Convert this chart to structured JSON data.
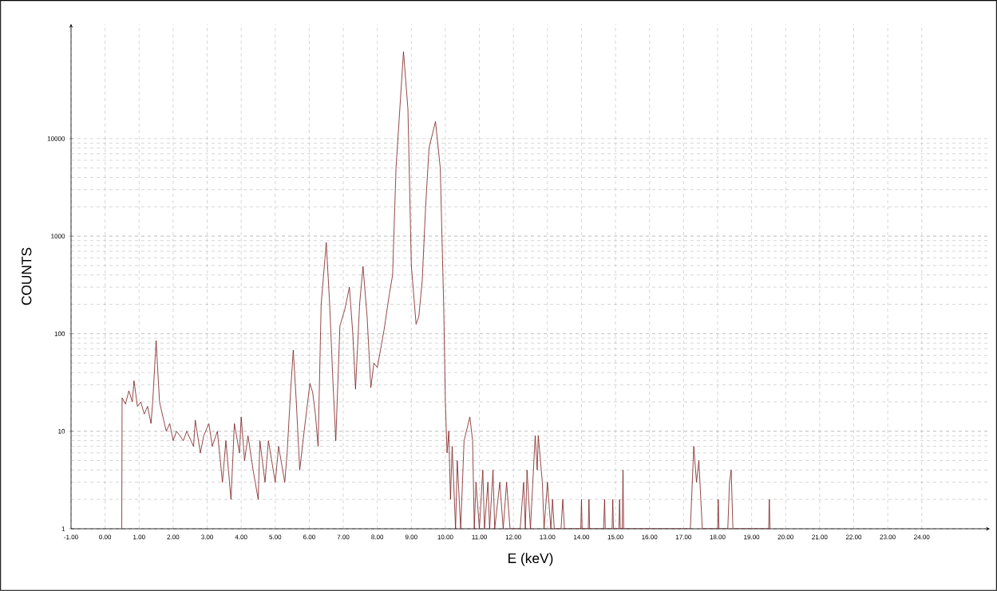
{
  "chart_data": {
    "type": "line",
    "xlabel": "E (keV)",
    "ylabel": "COUNTS",
    "log": "y",
    "grid": true,
    "marker": "none",
    "line_style": "solid",
    "xlim": [
      -1,
      26
    ],
    "ylim": [
      1,
      150000
    ],
    "xticks": [
      {
        "value": -1,
        "label": "-1.00"
      },
      {
        "value": 0,
        "label": "0.00"
      },
      {
        "value": 1,
        "label": "1.00"
      },
      {
        "value": 2,
        "label": "2.00"
      },
      {
        "value": 3,
        "label": "3.00"
      },
      {
        "value": 4,
        "label": "4.00"
      },
      {
        "value": 5,
        "label": "5.00"
      },
      {
        "value": 6,
        "label": "6.00"
      },
      {
        "value": 7,
        "label": "7.00"
      },
      {
        "value": 8,
        "label": "8.00"
      },
      {
        "value": 9,
        "label": "9.00"
      },
      {
        "value": 10,
        "label": "10.00"
      },
      {
        "value": 11,
        "label": "11.00"
      },
      {
        "value": 12,
        "label": "12.00"
      },
      {
        "value": 13,
        "label": "13.00"
      },
      {
        "value": 14,
        "label": "14.00"
      },
      {
        "value": 15,
        "label": "15.00"
      },
      {
        "value": 16,
        "label": "16.00"
      },
      {
        "value": 17,
        "label": "17.00"
      },
      {
        "value": 18,
        "label": "18.00"
      },
      {
        "value": 19,
        "label": "19.00"
      },
      {
        "value": 20,
        "label": "20.00"
      },
      {
        "value": 21,
        "label": "21.00"
      },
      {
        "value": 22,
        "label": "22.00"
      },
      {
        "value": 23,
        "label": "23.00"
      },
      {
        "value": 24,
        "label": "24.00"
      }
    ],
    "yticks": [
      1,
      10,
      100,
      1000,
      10000
    ],
    "series": [
      {
        "color": "#7b1a1a",
        "x": [
          0.49,
          0.5,
          0.6,
          0.7,
          0.8,
          0.85,
          0.95,
          1.05,
          1.15,
          1.25,
          1.35,
          1.4,
          1.5,
          1.6,
          1.7,
          1.8,
          1.9,
          2.0,
          2.1,
          2.3,
          2.4,
          2.6,
          2.65,
          2.8,
          2.9,
          3.05,
          3.15,
          3.3,
          3.45,
          3.55,
          3.7,
          3.8,
          3.95,
          4.0,
          4.1,
          4.2,
          4.35,
          4.5,
          4.55,
          4.7,
          4.8,
          5.0,
          5.1,
          5.28,
          5.35,
          5.45,
          5.53,
          5.62,
          5.72,
          5.85,
          6.02,
          6.1,
          6.18,
          6.26,
          6.35,
          6.5,
          6.6,
          6.7,
          6.78,
          6.9,
          7.05,
          7.18,
          7.28,
          7.36,
          7.48,
          7.58,
          7.7,
          7.81,
          7.9,
          8.0,
          8.1,
          8.2,
          8.35,
          8.45,
          8.55,
          8.77,
          8.9,
          9.0,
          9.14,
          9.22,
          9.32,
          9.42,
          9.52,
          9.71,
          9.85,
          9.95,
          10.0,
          10.05,
          10.1,
          10.15,
          10.2,
          10.3,
          10.35,
          10.45,
          10.55,
          10.72,
          10.8,
          10.85,
          10.9,
          11.0,
          11.1,
          11.15,
          11.25,
          11.3,
          11.4,
          11.45,
          11.6,
          11.7,
          11.8,
          11.9,
          12.2,
          12.3,
          12.35,
          12.4,
          12.5,
          12.64,
          12.7,
          12.73,
          12.85,
          12.9,
          13.0,
          13.1,
          13.15,
          13.2,
          13.4,
          13.45,
          13.5,
          13.98,
          14.0,
          14.02,
          14.2,
          14.22,
          14.24,
          14.65,
          14.68,
          14.7,
          14.9,
          14.92,
          14.94,
          15.1,
          15.12,
          15.14,
          15.2,
          15.22,
          15.24,
          17.2,
          17.3,
          17.38,
          17.45,
          17.55,
          18.0,
          18.02,
          18.04,
          18.3,
          18.35,
          18.4,
          18.45,
          19.5,
          19.52,
          19.54
        ],
        "values": [
          1,
          22,
          19,
          26,
          20,
          33,
          18,
          20,
          15,
          18,
          12,
          20,
          85,
          20,
          14,
          10,
          12,
          8,
          10,
          8,
          10,
          7,
          13,
          6,
          9,
          12,
          7,
          10,
          3,
          8,
          2,
          12,
          6,
          14,
          5,
          9,
          4,
          2,
          8,
          3,
          8,
          3,
          7,
          3,
          6,
          25,
          68,
          20,
          4,
          10,
          31,
          25,
          15,
          7,
          200,
          860,
          200,
          30,
          8,
          120,
          180,
          300,
          100,
          27,
          200,
          490,
          150,
          28,
          50,
          45,
          70,
          110,
          250,
          400,
          5000,
          78000,
          20000,
          500,
          125,
          150,
          350,
          2000,
          8000,
          15000,
          5000,
          200,
          20,
          6,
          10,
          2,
          7,
          1,
          5,
          1,
          8,
          14,
          8,
          1,
          3,
          1,
          4,
          1,
          3,
          1,
          4,
          1,
          3,
          1,
          3,
          1,
          1,
          3,
          1,
          4,
          1,
          9,
          4,
          9,
          3,
          1,
          3,
          1,
          2,
          1,
          1,
          2,
          1,
          1,
          2,
          1,
          1,
          2,
          1,
          1,
          2,
          1,
          1,
          2,
          1,
          1,
          2,
          1,
          1,
          4,
          1,
          1,
          7,
          3,
          5,
          1,
          1,
          2,
          1,
          1,
          3,
          4,
          1,
          1,
          2,
          1
        ]
      }
    ]
  }
}
